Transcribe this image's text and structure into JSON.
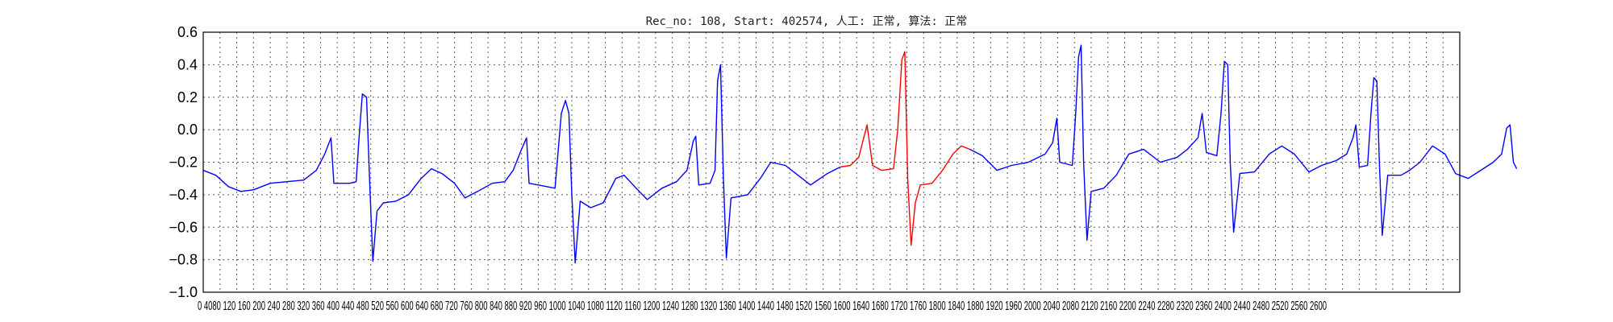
{
  "title": "Rec_no: 108, Start: 402574, 人工: 正常, 算法: 正常",
  "chart_data": {
    "type": "line",
    "title": "Rec_no: 108, Start: 402574, 人工: 正常, 算法: 正常",
    "xlabel": "",
    "ylabel": "",
    "xlim": [
      0,
      3000
    ],
    "ylim": [
      -1.0,
      0.6
    ],
    "yticks": [
      -1.0,
      -0.8,
      -0.6,
      -0.4,
      -0.2,
      0.0,
      0.2,
      0.4,
      0.6
    ],
    "ytick_labels": [
      "−1.0",
      "−0.8",
      "−0.6",
      "−0.4",
      "−0.2",
      "0.0",
      "0.2",
      "0.4",
      "0.6"
    ],
    "xtick_step": 40,
    "xtick_label_step": 80,
    "xtick_labels_text": "0 4080 120 160 200 240 280 320 360 400 440 480 520 560 600 640 680 720 760 800 840 880 920 960 1000 1040 1080 1120 1160 1200 1240 1280 1320 1360 1400 1440 1480 1520 1560 1600 1640 1680 1720 1760 1800 1840 1880 1920 1960 2000 2040 2080 2120 2160 2200 2240 2280 2320 2360 2400 2440 2480 2520 2560 2600",
    "grid": true,
    "series": [
      {
        "color": "#0000ff",
        "points": [
          [
            0,
            -0.25
          ],
          [
            30,
            -0.28
          ],
          [
            60,
            -0.35
          ],
          [
            90,
            -0.38
          ],
          [
            120,
            -0.37
          ],
          [
            160,
            -0.33
          ],
          [
            200,
            -0.32
          ],
          [
            240,
            -0.31
          ],
          [
            270,
            -0.25
          ],
          [
            290,
            -0.15
          ],
          [
            305,
            -0.05
          ],
          [
            312,
            -0.33
          ],
          [
            330,
            -0.33
          ],
          [
            350,
            -0.33
          ],
          [
            365,
            -0.32
          ],
          [
            372,
            -0.05
          ],
          [
            380,
            0.22
          ],
          [
            390,
            0.2
          ],
          [
            397,
            -0.3
          ],
          [
            405,
            -0.81
          ],
          [
            415,
            -0.5
          ],
          [
            430,
            -0.45
          ],
          [
            460,
            -0.44
          ],
          [
            490,
            -0.4
          ],
          [
            520,
            -0.3
          ],
          [
            545,
            -0.24
          ],
          [
            570,
            -0.27
          ],
          [
            600,
            -0.33
          ],
          [
            625,
            -0.42
          ],
          [
            655,
            -0.38
          ],
          [
            690,
            -0.33
          ],
          [
            720,
            -0.32
          ],
          [
            740,
            -0.25
          ],
          [
            760,
            -0.12
          ],
          [
            772,
            -0.05
          ],
          [
            778,
            -0.33
          ],
          [
            800,
            -0.34
          ],
          [
            840,
            -0.36
          ],
          [
            855,
            0.1
          ],
          [
            865,
            0.18
          ],
          [
            873,
            0.1
          ],
          [
            880,
            -0.4
          ],
          [
            888,
            -0.82
          ],
          [
            900,
            -0.44
          ],
          [
            925,
            -0.48
          ],
          [
            955,
            -0.45
          ],
          [
            985,
            -0.3
          ],
          [
            1005,
            -0.28
          ],
          [
            1030,
            -0.35
          ],
          [
            1060,
            -0.43
          ],
          [
            1095,
            -0.36
          ],
          [
            1130,
            -0.32
          ],
          [
            1155,
            -0.25
          ],
          [
            1170,
            -0.07
          ],
          [
            1176,
            -0.04
          ],
          [
            1183,
            -0.34
          ],
          [
            1210,
            -0.33
          ],
          [
            1222,
            -0.25
          ],
          [
            1228,
            0.3
          ],
          [
            1235,
            0.4
          ],
          [
            1242,
            -0.3
          ],
          [
            1249,
            -0.79
          ],
          [
            1260,
            -0.42
          ],
          [
            1300,
            -0.4
          ],
          [
            1330,
            -0.3
          ],
          [
            1355,
            -0.2
          ],
          [
            1390,
            -0.22
          ],
          [
            1420,
            -0.28
          ],
          [
            1450,
            -0.34
          ],
          [
            1490,
            -0.27
          ],
          [
            1520,
            -0.23
          ]
        ]
      },
      {
        "color": "#ff0000",
        "points": [
          [
            1520,
            -0.23
          ],
          [
            1545,
            -0.22
          ],
          [
            1565,
            -0.17
          ],
          [
            1585,
            0.03
          ],
          [
            1598,
            -0.22
          ],
          [
            1620,
            -0.25
          ],
          [
            1648,
            -0.24
          ],
          [
            1658,
            0.0
          ],
          [
            1668,
            0.43
          ],
          [
            1675,
            0.48
          ],
          [
            1682,
            -0.3
          ],
          [
            1690,
            -0.71
          ],
          [
            1700,
            -0.45
          ],
          [
            1712,
            -0.34
          ],
          [
            1740,
            -0.33
          ],
          [
            1765,
            -0.25
          ],
          [
            1790,
            -0.15
          ],
          [
            1810,
            -0.1
          ],
          [
            1830,
            -0.12
          ]
        ]
      },
      {
        "color": "#0000ff",
        "points": [
          [
            1830,
            -0.12
          ],
          [
            1860,
            -0.16
          ],
          [
            1895,
            -0.25
          ],
          [
            1930,
            -0.22
          ],
          [
            1970,
            -0.2
          ],
          [
            2010,
            -0.15
          ],
          [
            2028,
            -0.08
          ],
          [
            2038,
            0.07
          ],
          [
            2045,
            -0.2
          ],
          [
            2075,
            -0.22
          ],
          [
            2083,
            0.1
          ],
          [
            2090,
            0.45
          ],
          [
            2096,
            0.52
          ],
          [
            2102,
            -0.2
          ],
          [
            2110,
            -0.68
          ],
          [
            2120,
            -0.38
          ],
          [
            2150,
            -0.36
          ],
          [
            2180,
            -0.28
          ],
          [
            2210,
            -0.15
          ],
          [
            2245,
            -0.12
          ],
          [
            2285,
            -0.2
          ],
          [
            2325,
            -0.17
          ],
          [
            2350,
            -0.12
          ],
          [
            2375,
            -0.05
          ],
          [
            2385,
            0.1
          ],
          [
            2395,
            -0.14
          ],
          [
            2420,
            -0.16
          ],
          [
            2430,
            0.1
          ],
          [
            2438,
            0.42
          ],
          [
            2446,
            0.4
          ],
          [
            2452,
            -0.2
          ],
          [
            2460,
            -0.63
          ],
          [
            2475,
            -0.27
          ],
          [
            2510,
            -0.26
          ],
          [
            2545,
            -0.15
          ],
          [
            2575,
            -0.1
          ],
          [
            2605,
            -0.15
          ],
          [
            2640,
            -0.26
          ],
          [
            2670,
            -0.22
          ],
          [
            2705,
            -0.19
          ],
          [
            2730,
            -0.15
          ],
          [
            2745,
            -0.05
          ],
          [
            2752,
            0.03
          ],
          [
            2760,
            -0.23
          ],
          [
            2780,
            -0.22
          ],
          [
            2788,
            0.1
          ],
          [
            2795,
            0.32
          ],
          [
            2802,
            0.3
          ],
          [
            2808,
            -0.2
          ],
          [
            2815,
            -0.65
          ],
          [
            2828,
            -0.28
          ],
          [
            2860,
            -0.28
          ],
          [
            2880,
            -0.25
          ],
          [
            2905,
            -0.2
          ],
          [
            2935,
            -0.1
          ],
          [
            2965,
            -0.15
          ],
          [
            2990,
            -0.27
          ],
          [
            3020,
            -0.3
          ],
          [
            3050,
            -0.25
          ],
          [
            3080,
            -0.2
          ],
          [
            3100,
            -0.15
          ],
          [
            3112,
            0.01
          ],
          [
            3120,
            0.03
          ],
          [
            3128,
            -0.2
          ],
          [
            3136,
            -0.24
          ]
        ]
      }
    ]
  }
}
